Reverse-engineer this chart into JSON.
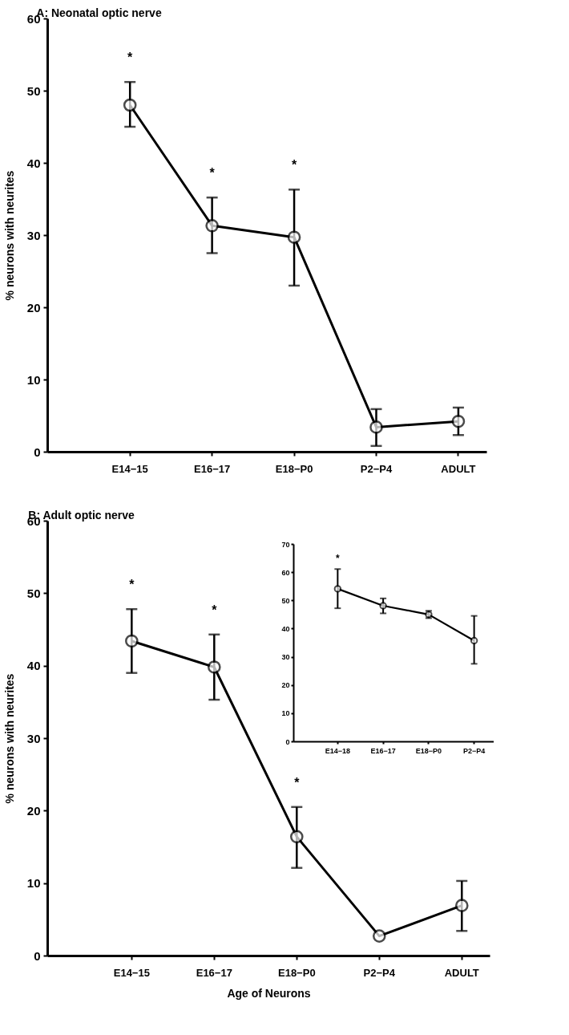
{
  "chart_data": [
    {
      "type": "line",
      "title": "A: Neonatal optic nerve",
      "ylabel": "% neurons with neurites",
      "categories": [
        "E14−15",
        "E16−17",
        "E18−P0",
        "P2−P4",
        "ADULT"
      ],
      "series": [
        {
          "color": "#000000",
          "values": [
            48,
            31.3,
            29.7,
            3.4,
            4.2
          ],
          "errors": [
            [
              45,
              51.2
            ],
            [
              27.5,
              35.2
            ],
            [
              23,
              36.3
            ],
            [
              0.8,
              5.9
            ],
            [
              2.3,
              6.1
            ]
          ]
        }
      ],
      "ylim": [
        0,
        60
      ],
      "yticks": [
        0,
        10,
        20,
        30,
        40,
        50,
        60
      ],
      "grid": false,
      "legend": false,
      "marker": "circle",
      "line_style": "solid",
      "annotations": [
        "*",
        "*",
        "*"
      ]
    },
    {
      "type": "line",
      "title": "B: Adult optic nerve",
      "xlabel": "Age of Neurons",
      "ylabel": "% neurons with neurites",
      "categories": [
        "E14−15",
        "E16−17",
        "E18−P0",
        "P2−P4",
        "ADULT"
      ],
      "series": [
        {
          "color": "#000000",
          "values": [
            43.4,
            39.8,
            16.4,
            2.7,
            6.9
          ],
          "errors": [
            [
              39,
              47.8
            ],
            [
              35.3,
              44.3
            ],
            [
              12.1,
              20.5
            ],
            null,
            [
              3.4,
              10.3
            ]
          ]
        }
      ],
      "ylim": [
        0,
        60
      ],
      "yticks": [
        0,
        10,
        20,
        30,
        40,
        50,
        60
      ],
      "grid": false,
      "legend": false,
      "marker": "circle",
      "line_style": "solid",
      "annotations": [
        "*",
        "*",
        "*"
      ]
    },
    {
      "type": "line",
      "categories": [
        "E14−18",
        "E16−17",
        "E18−P0",
        "P2−P4"
      ],
      "series": [
        {
          "color": "#000000",
          "values": [
            54.1,
            48.1,
            45,
            35.7
          ],
          "errors": [
            [
              47.2,
              61.1
            ],
            [
              45.4,
              50.7
            ],
            [
              43.7,
              46.3
            ],
            [
              27.5,
              44.5
            ]
          ]
        }
      ],
      "ylim": [
        0,
        70
      ],
      "yticks": [
        0,
        10,
        20,
        30,
        40,
        50,
        60,
        70
      ],
      "grid": false,
      "legend": false,
      "marker": "circle",
      "line_style": "solid",
      "annotations": [
        "*"
      ]
    }
  ]
}
